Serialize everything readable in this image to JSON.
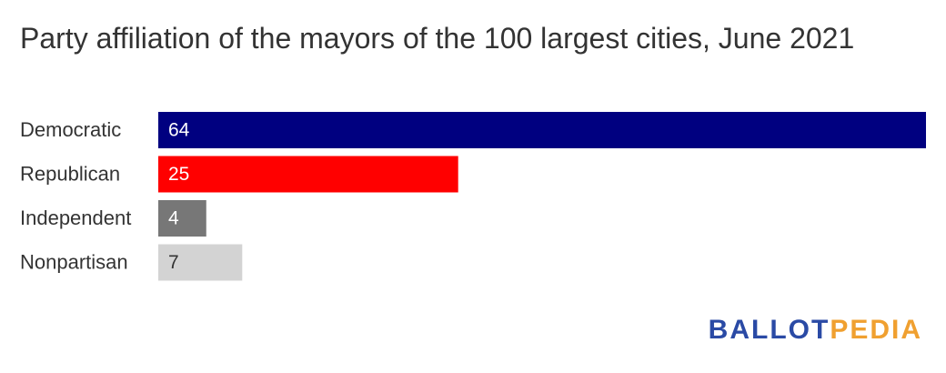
{
  "chart_data": {
    "type": "bar",
    "orientation": "horizontal",
    "title": "Party affiliation of the mayors of the 100 largest cities, June 2021",
    "categories": [
      "Democratic",
      "Republican",
      "Independent",
      "Nonpartisan"
    ],
    "values": [
      64,
      25,
      4,
      7
    ],
    "colors": [
      "#000080",
      "#ff0000",
      "#777777",
      "#d3d3d3"
    ]
  },
  "logo": {
    "first": "BALLOT",
    "second": "PEDIA"
  }
}
